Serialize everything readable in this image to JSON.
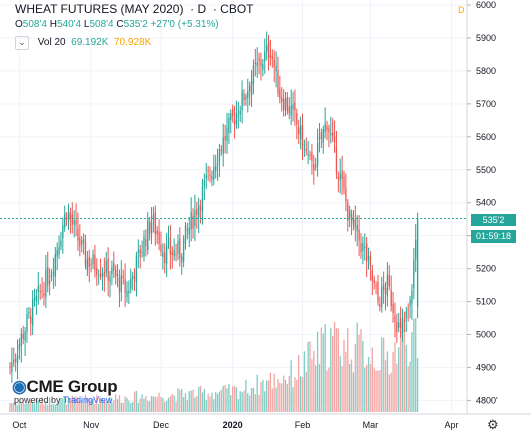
{
  "header": {
    "title": "WHEAT FUTURES (MAY 2020)",
    "interval": "D",
    "exchange": "CBOT",
    "open_label": "O",
    "open": "508'4",
    "high_label": "H",
    "high": "540'4",
    "low_label": "L",
    "low": "508'4",
    "close_label": "C",
    "close": "535'2",
    "change": "+27'0 (+5.31%)",
    "vol_label": "Vol 20",
    "vol_value": "69.192K",
    "vol_ma": "70.928K",
    "chevron": "⌄",
    "badge": "D"
  },
  "colors": {
    "up": "#26a69a",
    "down": "#ef5350",
    "up_vol": "#7fcdc4",
    "down_vol": "#f4a6a4",
    "grid": "#f0f3fa",
    "ma": "#f7a600"
  },
  "last_price_label": "535'2",
  "countdown": "01:59:18",
  "logo": {
    "main": "CME Group",
    "sub": "powered by",
    "tv": "TradingView"
  },
  "icons": {
    "settings": "gear-icon",
    "chevron": "chevron-down-icon"
  },
  "chart_data": {
    "type": "candlestick",
    "y_axis_labels": [
      "4800'",
      "4900",
      "5000",
      "5100",
      "5200",
      "5300",
      "5400",
      "5500",
      "5600",
      "5700",
      "5800",
      "5900",
      "6000"
    ],
    "y_axis_values": [
      4800,
      4900,
      5000,
      5100,
      5200,
      5300,
      5400,
      5500,
      5600,
      5700,
      5800,
      5900,
      6000
    ],
    "ylim": [
      4780,
      6000
    ],
    "x_tick_labels": [
      "Oct",
      "Nov",
      "Dec",
      "2020",
      "Feb",
      "Mar",
      "Apr"
    ],
    "x_tick_index": [
      5,
      43,
      80,
      118,
      155,
      191,
      234
    ],
    "x_count": 240,
    "last_price": 5352,
    "close_path_index": [
      0,
      10,
      22,
      30,
      40,
      55,
      62,
      75,
      82,
      90,
      100,
      110,
      122,
      130,
      138,
      143,
      150,
      160,
      168,
      180,
      188,
      195,
      200,
      207,
      212,
      216
    ],
    "close_path_value": [
      4900,
      5050,
      5200,
      5380,
      5230,
      5180,
      5130,
      5350,
      5250,
      5250,
      5400,
      5550,
      5700,
      5800,
      5870,
      5730,
      5670,
      5500,
      5650,
      5350,
      5250,
      5100,
      5150,
      5000,
      5085,
      5352
    ],
    "volume_path_index": [
      0,
      60,
      120,
      150,
      170,
      190,
      200,
      210,
      216
    ],
    "volume_path_value": [
      0.1,
      0.15,
      0.22,
      0.4,
      0.75,
      0.65,
      0.55,
      0.8,
      0.7
    ]
  }
}
